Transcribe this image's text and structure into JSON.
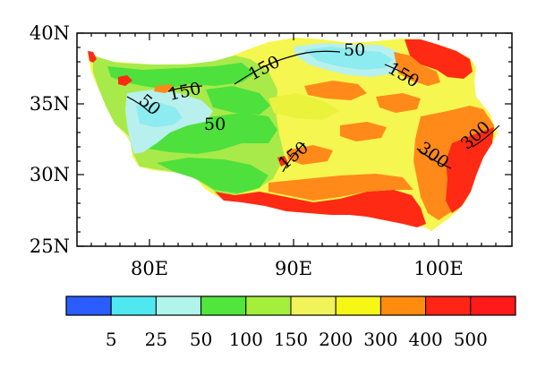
{
  "map": {
    "lat_ticks": [
      "40N",
      "35N",
      "30N",
      "25N"
    ],
    "lon_ticks": [
      "80E",
      "90E",
      "100E"
    ],
    "contour_labels": [
      "50",
      "150",
      "150",
      "50",
      "150",
      "50",
      "150",
      "300",
      "300"
    ],
    "legend": {
      "labels": [
        "5",
        "25",
        "50",
        "100",
        "150",
        "200",
        "300",
        "400",
        "500"
      ],
      "colors": [
        "#2a5cff",
        "#50e8f0",
        "#b0f4ec",
        "#50e63c",
        "#a6ee3c",
        "#f2f25a",
        "#f7f716",
        "#ff8c0f",
        "#ff2414",
        "#ff1a1a"
      ]
    },
    "palette": {
      "cyan": "#8cecf0",
      "lightcyan": "#b8f0ee",
      "green": "#4ee03c",
      "lightgreen": "#a8ea4a",
      "yellow": "#f6f650",
      "yellow2": "#eaf23c",
      "orange": "#ff8a1a",
      "red": "#ff2a14"
    }
  }
}
